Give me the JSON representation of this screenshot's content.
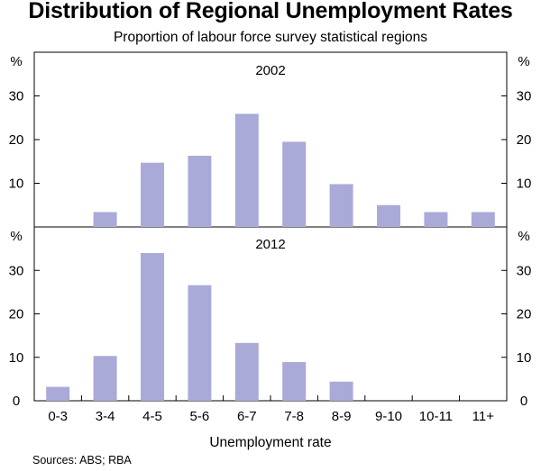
{
  "header": {
    "title": "Distribution of Regional Unemployment Rates",
    "subtitle": "Proportion of labour force survey statistical regions"
  },
  "footer": {
    "source": "Sources: ABS; RBA"
  },
  "chart_data": {
    "type": "bar",
    "title": "Distribution of Regional Unemployment Rates",
    "subtitle": "Proportion of labour force survey statistical regions",
    "xlabel": "Unemployment rate",
    "ylabel": "%",
    "bar_color": "#aaaad8",
    "categories": [
      "0-3",
      "3-4",
      "4-5",
      "5-6",
      "6-7",
      "7-8",
      "8-9",
      "9-10",
      "10-11",
      "11+"
    ],
    "panels": [
      {
        "name": "2002",
        "ylim": [
          0,
          40
        ],
        "yticks": [
          10,
          20,
          30
        ],
        "values": [
          0,
          3.4,
          14.7,
          16.3,
          25.9,
          19.5,
          9.8,
          5.0,
          3.4,
          3.4
        ]
      },
      {
        "name": "2012",
        "ylim": [
          0,
          40
        ],
        "yticks": [
          0,
          10,
          20,
          30
        ],
        "values": [
          3.2,
          10.3,
          34.0,
          26.6,
          13.3,
          8.9,
          4.4,
          0,
          0,
          0
        ]
      }
    ],
    "grid": false,
    "legend": "none"
  }
}
